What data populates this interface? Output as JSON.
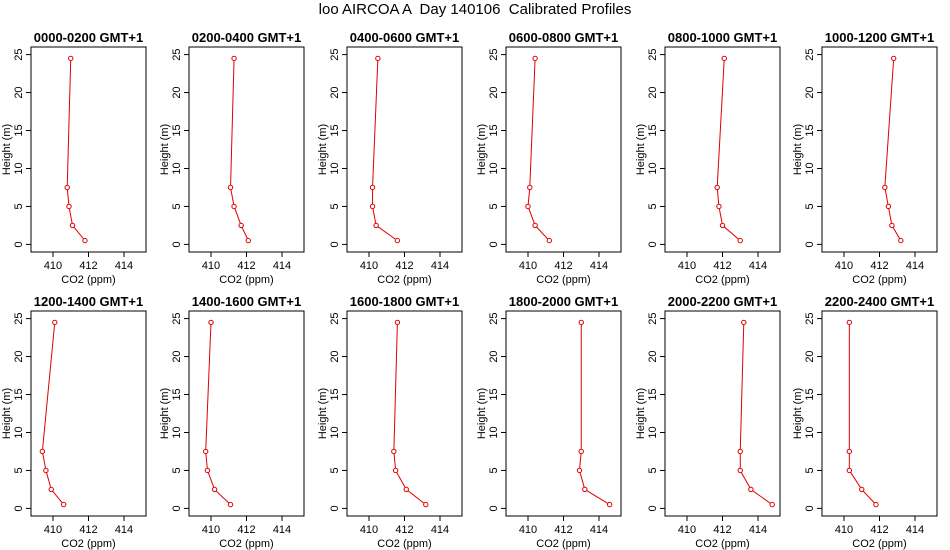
{
  "title": "loo AIRCOA A  Day 140106  Calibrated Profiles",
  "colors": {
    "line": "#e00000",
    "axis": "#000000"
  },
  "chart_data": [
    {
      "type": "line",
      "title": "0000-0200 GMT+1",
      "xlabel": "CO2 (ppm)",
      "ylabel": "Height (m)",
      "xlim": [
        409,
        415
      ],
      "ylim": [
        0,
        25
      ],
      "xticks": [
        410,
        412,
        414
      ],
      "yticks": [
        0,
        5,
        10,
        15,
        20,
        25
      ],
      "points": [
        {
          "x": 411.8,
          "y": 0.5
        },
        {
          "x": 411.1,
          "y": 2.5
        },
        {
          "x": 410.9,
          "y": 5
        },
        {
          "x": 410.8,
          "y": 7.5
        },
        {
          "x": 411.0,
          "y": 24.5
        }
      ]
    },
    {
      "type": "line",
      "title": "0200-0400 GMT+1",
      "xlabel": "CO2 (ppm)",
      "ylabel": "Height (m)",
      "xlim": [
        409,
        415
      ],
      "ylim": [
        0,
        25
      ],
      "xticks": [
        410,
        412,
        414
      ],
      "yticks": [
        0,
        5,
        10,
        15,
        20,
        25
      ],
      "points": [
        {
          "x": 412.1,
          "y": 0.5
        },
        {
          "x": 411.7,
          "y": 2.5
        },
        {
          "x": 411.3,
          "y": 5
        },
        {
          "x": 411.1,
          "y": 7.5
        },
        {
          "x": 411.3,
          "y": 24.5
        }
      ]
    },
    {
      "type": "line",
      "title": "0400-0600 GMT+1",
      "xlabel": "CO2 (ppm)",
      "ylabel": "Height (m)",
      "xlim": [
        409,
        415
      ],
      "ylim": [
        0,
        25
      ],
      "xticks": [
        410,
        412,
        414
      ],
      "yticks": [
        0,
        5,
        10,
        15,
        20,
        25
      ],
      "points": [
        {
          "x": 411.6,
          "y": 0.5
        },
        {
          "x": 410.4,
          "y": 2.5
        },
        {
          "x": 410.2,
          "y": 5
        },
        {
          "x": 410.2,
          "y": 7.5
        },
        {
          "x": 410.5,
          "y": 24.5
        }
      ]
    },
    {
      "type": "line",
      "title": "0600-0800 GMT+1",
      "xlabel": "CO2 (ppm)",
      "ylabel": "Height (m)",
      "xlim": [
        409,
        415
      ],
      "ylim": [
        0,
        25
      ],
      "xticks": [
        410,
        412,
        414
      ],
      "yticks": [
        0,
        5,
        10,
        15,
        20,
        25
      ],
      "points": [
        {
          "x": 411.2,
          "y": 0.5
        },
        {
          "x": 410.4,
          "y": 2.5
        },
        {
          "x": 410.0,
          "y": 5
        },
        {
          "x": 410.1,
          "y": 7.5
        },
        {
          "x": 410.4,
          "y": 24.5
        }
      ]
    },
    {
      "type": "line",
      "title": "0800-1000 GMT+1",
      "xlabel": "CO2 (ppm)",
      "ylabel": "Height (m)",
      "xlim": [
        409,
        415
      ],
      "ylim": [
        0,
        25
      ],
      "xticks": [
        410,
        412,
        414
      ],
      "yticks": [
        0,
        5,
        10,
        15,
        20,
        25
      ],
      "points": [
        {
          "x": 413.0,
          "y": 0.5
        },
        {
          "x": 412.0,
          "y": 2.5
        },
        {
          "x": 411.8,
          "y": 5
        },
        {
          "x": 411.7,
          "y": 7.5
        },
        {
          "x": 412.1,
          "y": 24.5
        }
      ]
    },
    {
      "type": "line",
      "title": "1000-1200 GMT+1",
      "xlabel": "CO2 (ppm)",
      "ylabel": "Height (m)",
      "xlim": [
        409,
        415
      ],
      "ylim": [
        0,
        25
      ],
      "xticks": [
        410,
        412,
        414
      ],
      "yticks": [
        0,
        5,
        10,
        15,
        20,
        25
      ],
      "points": [
        {
          "x": 413.2,
          "y": 0.5
        },
        {
          "x": 412.7,
          "y": 2.5
        },
        {
          "x": 412.5,
          "y": 5
        },
        {
          "x": 412.3,
          "y": 7.5
        },
        {
          "x": 412.8,
          "y": 24.5
        }
      ]
    },
    {
      "type": "line",
      "title": "1200-1400 GMT+1",
      "xlabel": "CO2 (ppm)",
      "ylabel": "Height (m)",
      "xlim": [
        409,
        415
      ],
      "ylim": [
        0,
        25
      ],
      "xticks": [
        410,
        412,
        414
      ],
      "yticks": [
        0,
        5,
        10,
        15,
        20,
        25
      ],
      "points": [
        {
          "x": 410.6,
          "y": 0.5
        },
        {
          "x": 409.9,
          "y": 2.5
        },
        {
          "x": 409.6,
          "y": 5
        },
        {
          "x": 409.4,
          "y": 7.5
        },
        {
          "x": 410.1,
          "y": 24.5
        }
      ]
    },
    {
      "type": "line",
      "title": "1400-1600 GMT+1",
      "xlabel": "CO2 (ppm)",
      "ylabel": "Height (m)",
      "xlim": [
        409,
        415
      ],
      "ylim": [
        0,
        25
      ],
      "xticks": [
        410,
        412,
        414
      ],
      "yticks": [
        0,
        5,
        10,
        15,
        20,
        25
      ],
      "points": [
        {
          "x": 411.1,
          "y": 0.5
        },
        {
          "x": 410.2,
          "y": 2.5
        },
        {
          "x": 409.8,
          "y": 5
        },
        {
          "x": 409.7,
          "y": 7.5
        },
        {
          "x": 410.0,
          "y": 24.5
        }
      ]
    },
    {
      "type": "line",
      "title": "1600-1800 GMT+1",
      "xlabel": "CO2 (ppm)",
      "ylabel": "Height (m)",
      "xlim": [
        409,
        415
      ],
      "ylim": [
        0,
        25
      ],
      "xticks": [
        410,
        412,
        414
      ],
      "yticks": [
        0,
        5,
        10,
        15,
        20,
        25
      ],
      "points": [
        {
          "x": 413.2,
          "y": 0.5
        },
        {
          "x": 412.1,
          "y": 2.5
        },
        {
          "x": 411.5,
          "y": 5
        },
        {
          "x": 411.4,
          "y": 7.5
        },
        {
          "x": 411.6,
          "y": 24.5
        }
      ]
    },
    {
      "type": "line",
      "title": "1800-2000 GMT+1",
      "xlabel": "CO2 (ppm)",
      "ylabel": "Height (m)",
      "xlim": [
        409,
        415
      ],
      "ylim": [
        0,
        25
      ],
      "xticks": [
        410,
        412,
        414
      ],
      "yticks": [
        0,
        5,
        10,
        15,
        20,
        25
      ],
      "points": [
        {
          "x": 414.6,
          "y": 0.5
        },
        {
          "x": 413.2,
          "y": 2.5
        },
        {
          "x": 412.9,
          "y": 5
        },
        {
          "x": 413.0,
          "y": 7.5
        },
        {
          "x": 413.0,
          "y": 24.5
        }
      ]
    },
    {
      "type": "line",
      "title": "2000-2200 GMT+1",
      "xlabel": "CO2 (ppm)",
      "ylabel": "Height (m)",
      "xlim": [
        409,
        415
      ],
      "ylim": [
        0,
        25
      ],
      "xticks": [
        410,
        412,
        414
      ],
      "yticks": [
        0,
        5,
        10,
        15,
        20,
        25
      ],
      "points": [
        {
          "x": 414.8,
          "y": 0.5
        },
        {
          "x": 413.6,
          "y": 2.5
        },
        {
          "x": 413.0,
          "y": 5
        },
        {
          "x": 413.0,
          "y": 7.5
        },
        {
          "x": 413.2,
          "y": 24.5
        }
      ]
    },
    {
      "type": "line",
      "title": "2200-2400 GMT+1",
      "xlabel": "CO2 (ppm)",
      "ylabel": "Height (m)",
      "xlim": [
        409,
        415
      ],
      "ylim": [
        0,
        25
      ],
      "xticks": [
        410,
        412,
        414
      ],
      "yticks": [
        0,
        5,
        10,
        15,
        20,
        25
      ],
      "points": [
        {
          "x": 411.8,
          "y": 0.5
        },
        {
          "x": 411.0,
          "y": 2.5
        },
        {
          "x": 410.3,
          "y": 5
        },
        {
          "x": 410.3,
          "y": 7.5
        },
        {
          "x": 410.3,
          "y": 24.5
        }
      ]
    }
  ]
}
